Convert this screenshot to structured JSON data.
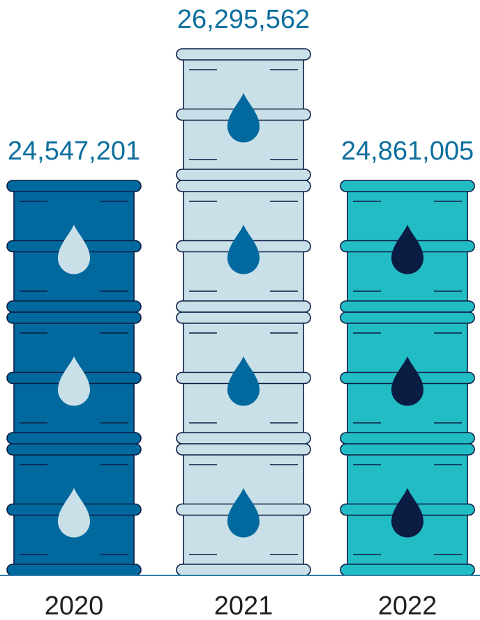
{
  "chart_data": {
    "type": "bar",
    "categories": [
      "2020",
      "2021",
      "2022"
    ],
    "values": [
      24547201,
      26295562,
      24861005
    ],
    "value_labels": [
      "24,547,201",
      "26,295,562",
      "24,861,005"
    ],
    "barrels_shown": [
      3,
      4,
      3
    ],
    "title": "",
    "xlabel": "",
    "ylabel": "",
    "grid": false,
    "legend": "none",
    "colors": {
      "bars": [
        "#02699f",
        "#c9e0e8",
        "#22bcc5"
      ],
      "drops": [
        "#c9e0e8",
        "#02699f",
        "#0b1c43"
      ],
      "value_text": "#0c6e9e",
      "outline": "#0b1c43",
      "baseline": "#2f7ea6"
    }
  }
}
